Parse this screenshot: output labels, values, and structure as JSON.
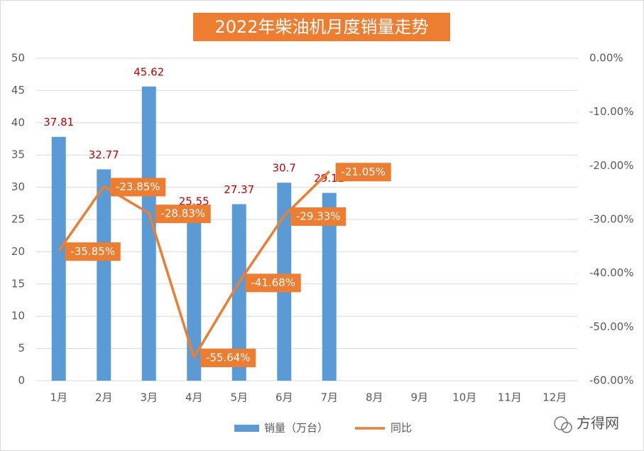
{
  "chart_data": {
    "type": "bar-line",
    "title": "2022年柴油机月度销量走势",
    "categories": [
      "1月",
      "2月",
      "3月",
      "4月",
      "5月",
      "6月",
      "7月",
      "8月",
      "9月",
      "10月",
      "11月",
      "12月"
    ],
    "series": [
      {
        "name": "销量（万台）",
        "type": "bar",
        "color": "#5B9BD5",
        "label_color": "#C00000",
        "values": [
          37.81,
          32.77,
          45.62,
          25.55,
          27.37,
          30.7,
          29.12,
          null,
          null,
          null,
          null,
          null
        ]
      },
      {
        "name": "同比",
        "type": "line",
        "axis": "y2",
        "color": "#ED7D31",
        "values": [
          -35.85,
          -23.85,
          -28.83,
          -55.64,
          -41.68,
          -29.33,
          -21.05,
          null,
          null,
          null,
          null,
          null
        ],
        "value_labels": [
          "-35.85%",
          "-23.85%",
          "-28.83%",
          "-55.64%",
          "-41.68%",
          "-29.33%",
          "-21.05%",
          null,
          null,
          null,
          null,
          null
        ]
      }
    ],
    "ylim": [
      0,
      50
    ],
    "yticks": [
      0,
      5,
      10,
      15,
      20,
      25,
      30,
      35,
      40,
      45,
      50
    ],
    "y2lim": [
      -60,
      0
    ],
    "y2ticks": [
      {
        "value": -60,
        "label": "-60.00%"
      },
      {
        "value": -50,
        "label": "-50.00%"
      },
      {
        "value": -40,
        "label": "-40.00%"
      },
      {
        "value": -30,
        "label": "-30.00%"
      },
      {
        "value": -20,
        "label": "-20.00%"
      },
      {
        "value": -10,
        "label": "-10.00%"
      },
      {
        "value": 0,
        "label": "0.00%"
      }
    ],
    "grid": true,
    "legend": "bottom",
    "watermark": "方得网"
  }
}
